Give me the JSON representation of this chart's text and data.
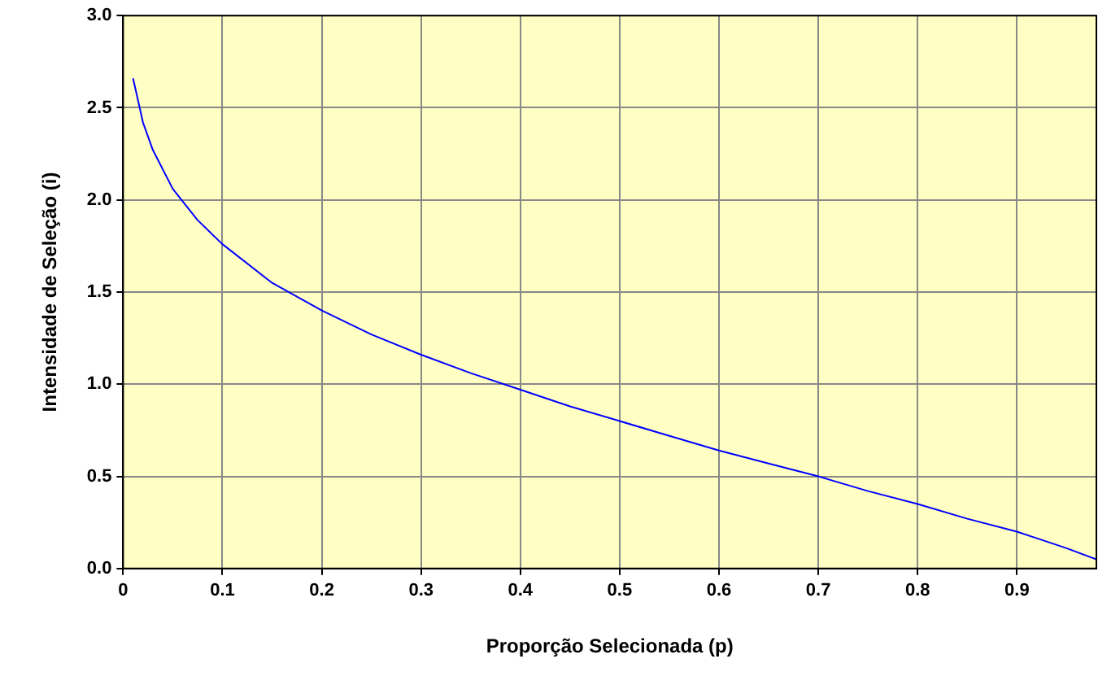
{
  "chart_data": {
    "type": "line",
    "xlabel": "Proporção Selecionada (p)",
    "ylabel": "Intensidade de Seleção (i)",
    "x": [
      0.01,
      0.02,
      0.03,
      0.05,
      0.075,
      0.1,
      0.15,
      0.2,
      0.25,
      0.3,
      0.35,
      0.4,
      0.45,
      0.5,
      0.55,
      0.6,
      0.65,
      0.7,
      0.75,
      0.8,
      0.85,
      0.9,
      0.95,
      0.98
    ],
    "series": [
      {
        "color": "#0000ff",
        "values": [
          2.66,
          2.42,
          2.27,
          2.06,
          1.89,
          1.76,
          1.55,
          1.4,
          1.27,
          1.16,
          1.06,
          0.97,
          0.88,
          0.8,
          0.72,
          0.64,
          0.57,
          0.5,
          0.42,
          0.35,
          0.27,
          0.2,
          0.11,
          0.05
        ]
      }
    ],
    "xlim": [
      0,
      0.98
    ],
    "xticks": [
      0,
      0.1,
      0.2,
      0.3,
      0.4,
      0.5,
      0.6,
      0.7,
      0.8,
      0.9
    ],
    "ylim": [
      0,
      3
    ],
    "yticks": [
      {
        "value": 0,
        "label": "0.0"
      },
      {
        "value": 0.5,
        "label": "0.5"
      },
      {
        "value": 1,
        "label": "1.0"
      },
      {
        "value": 1.5,
        "label": "1.5"
      },
      {
        "value": 2,
        "label": "2.0"
      },
      {
        "value": 2.5,
        "label": "2.5"
      },
      {
        "value": 3,
        "label": "3.0"
      }
    ],
    "grid": true,
    "legend": false,
    "marker": "none",
    "line_style": "solid"
  }
}
